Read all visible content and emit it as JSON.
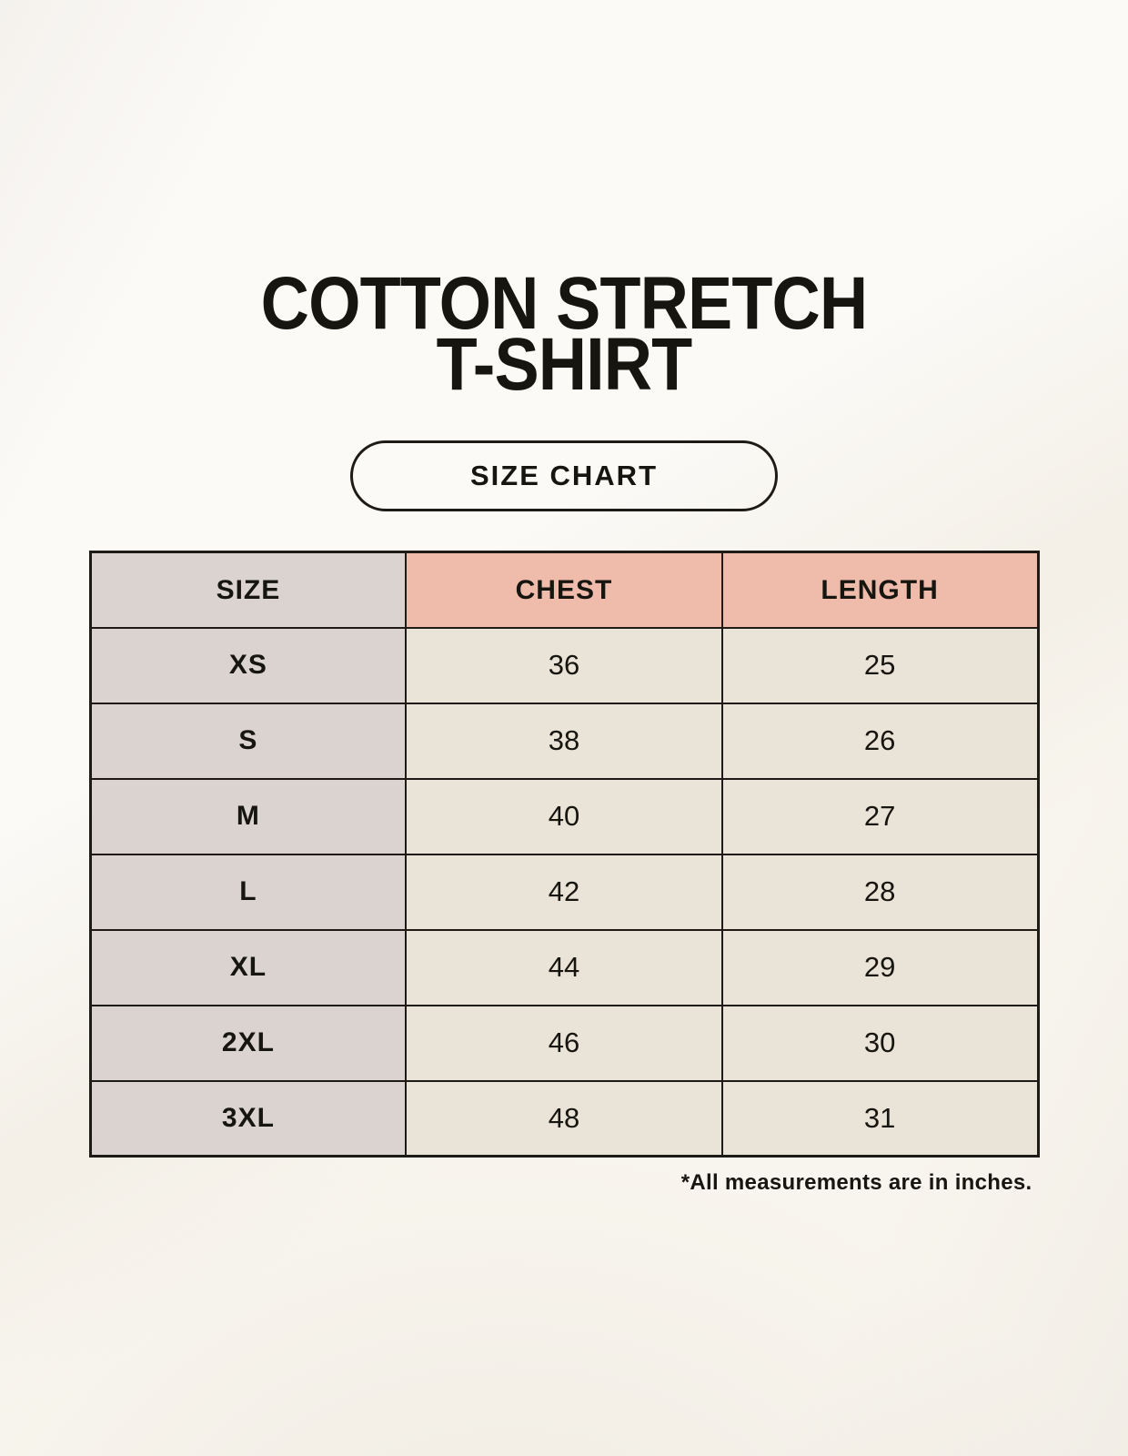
{
  "page": {
    "title_line1": "COTTON STRETCH",
    "title_line2": "T-SHIRT",
    "badge_label": "SIZE CHART",
    "footnote": "*All measurements are in inches."
  },
  "chart_data": {
    "type": "table",
    "title": "COTTON STRETCH T-SHIRT",
    "subtitle": "SIZE CHART",
    "columns": [
      "SIZE",
      "CHEST",
      "LENGTH"
    ],
    "rows": [
      [
        "XS",
        "36",
        "25"
      ],
      [
        "S",
        "38",
        "26"
      ],
      [
        "M",
        "40",
        "27"
      ],
      [
        "L",
        "42",
        "28"
      ],
      [
        "XL",
        "44",
        "29"
      ],
      [
        "2XL",
        "46",
        "30"
      ],
      [
        "3XL",
        "48",
        "31"
      ]
    ],
    "note": "*All measurements are in inches."
  },
  "colors": {
    "page_background": "#f8f5ee",
    "header_accent": "#efbcab",
    "label_column_bg": "#dad3d0",
    "data_cell_bg": "#eae3d7",
    "table_border": "#1e1b17",
    "text": "#17150f"
  }
}
